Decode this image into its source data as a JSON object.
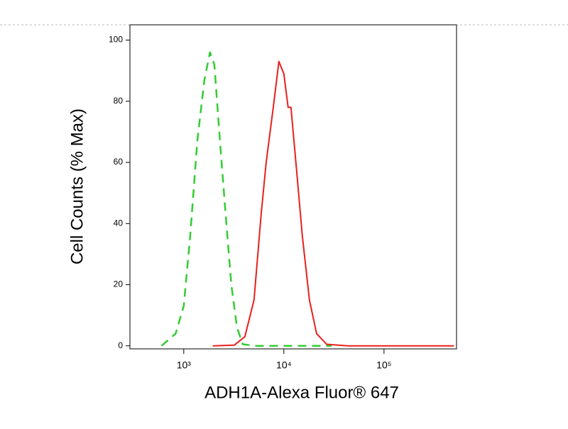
{
  "chart_data": {
    "type": "line",
    "xlabel": "ADH1A-Alexa Fluor® 647",
    "ylabel": "Cell Counts (% Max)",
    "xscale": "log",
    "xlim": [
      290,
      530000
    ],
    "ylim": [
      -1,
      105
    ],
    "xticks": [
      {
        "value": 1000,
        "label": "10³"
      },
      {
        "value": 10000,
        "label": "10⁴"
      },
      {
        "value": 100000,
        "label": "10⁵"
      }
    ],
    "yticks": [
      0,
      20,
      40,
      60,
      80,
      100
    ],
    "grid": false,
    "series": [
      {
        "color": "#33cc33",
        "linestyle": "dashed",
        "x": [
          600,
          830,
          1000,
          1160,
          1365,
          1607,
          1830,
          2020,
          2300,
          2620,
          2985,
          3400,
          3880,
          5200,
          30000
        ],
        "values": [
          0,
          4,
          13,
          36,
          67,
          87,
          96,
          92,
          67,
          43,
          20,
          6,
          0.5,
          0,
          0
        ]
      },
      {
        "color": "#e8201c",
        "linestyle": "solid",
        "x": [
          1950,
          3190,
          4080,
          5030,
          5930,
          6650,
          7830,
          8920,
          10000,
          11030,
          11760,
          13420,
          15290,
          17990,
          21200,
          26700,
          43600,
          500000
        ],
        "values": [
          0,
          0.2,
          3,
          15,
          43,
          60,
          78,
          93,
          89,
          78,
          78,
          57,
          36,
          15,
          4,
          0.5,
          0,
          0
        ]
      }
    ]
  }
}
